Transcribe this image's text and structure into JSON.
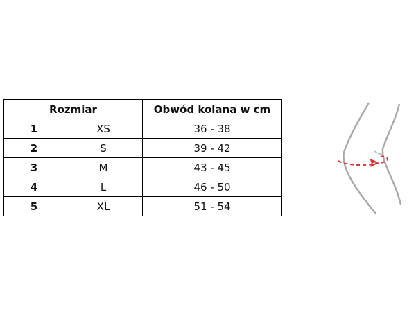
{
  "table": {
    "header": [
      "Rozmiar",
      "Obwód kolana w cm"
    ],
    "rows": [
      [
        "1",
        "XS",
        "36 - 38"
      ],
      [
        "2",
        "S",
        "39 - 42"
      ],
      [
        "3",
        "M",
        "43 - 45"
      ],
      [
        "4",
        "L",
        "46 - 50"
      ],
      [
        "5",
        "XL",
        "51 - 54"
      ]
    ]
  }
}
